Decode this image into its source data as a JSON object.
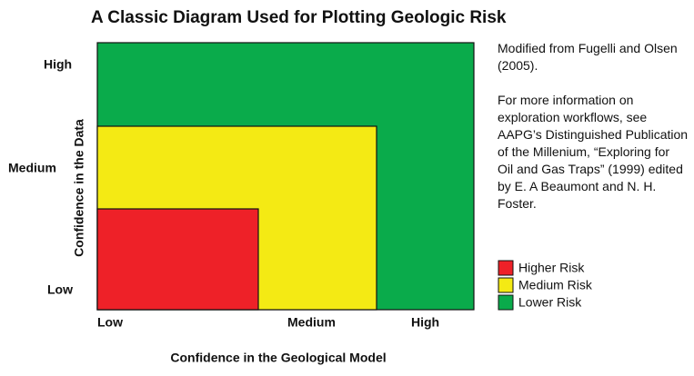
{
  "title": "A Classic Diagram Used for Plotting Geologic Risk",
  "y_axis": {
    "title": "Confidence in the Data",
    "labels": [
      "High",
      "Medium",
      "Low"
    ]
  },
  "x_axis": {
    "title": "Confidence in the Geological Model",
    "labels": [
      "Low",
      "Medium",
      "High"
    ]
  },
  "notes": [
    "Modified from Fugelli and Olsen (2005).",
    "For more information on exploration workflows, see AAPG’s Distinguished Publication of the Millenium, “Exploring for Oil and Gas Traps” (1999) edited by E. A Beaumont and N. H. Foster."
  ],
  "legend": [
    {
      "name": "Higher Risk",
      "color": "#ee2128"
    },
    {
      "name": "Medium Risk",
      "color": "#f4ea14"
    },
    {
      "name": "Lower Risk",
      "color": "#0aab4b"
    }
  ]
}
